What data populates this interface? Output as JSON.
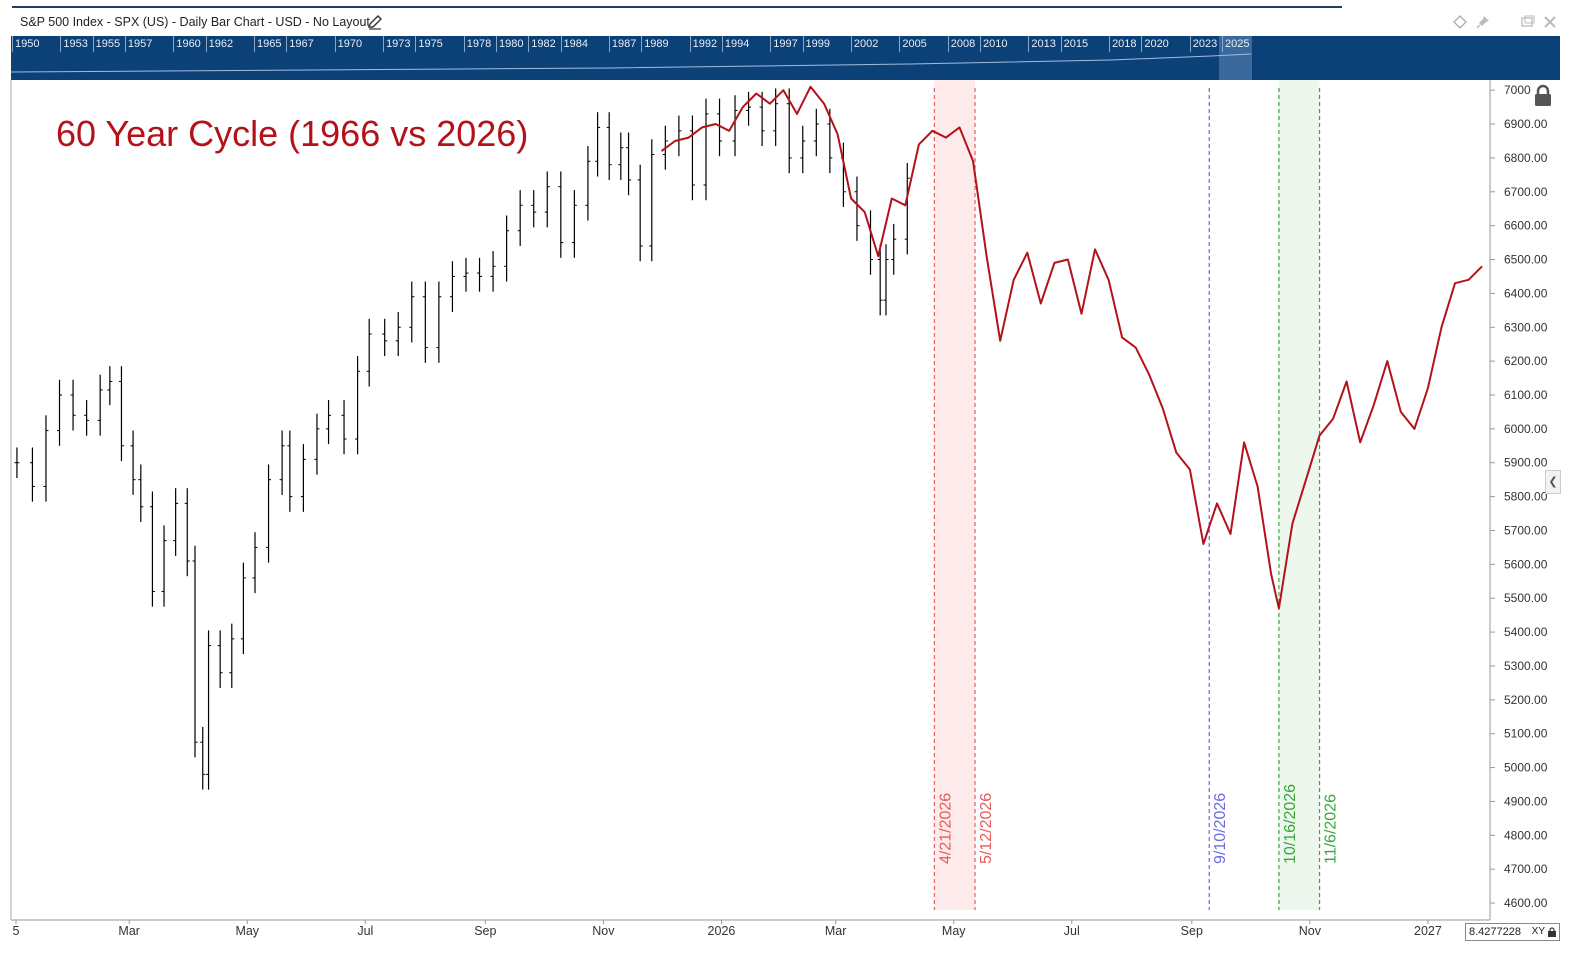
{
  "header": {
    "title": "S&P 500 Index - SPX (US) - Daily Bar Chart - USD - No Layout",
    "edit_icon": "pencil-icon",
    "icons": [
      "diamond-icon",
      "pin-icon",
      "window-icon",
      "close-icon"
    ]
  },
  "navigator": {
    "years": [
      "1950",
      "1953",
      "1955",
      "1957",
      "1960",
      "1962",
      "1965",
      "1967",
      "1970",
      "1973",
      "1975",
      "1978",
      "1980",
      "1982",
      "1984",
      "1987",
      "1989",
      "1992",
      "1994",
      "1997",
      "1999",
      "2002",
      "2005",
      "2008",
      "2010",
      "2013",
      "2015",
      "2018",
      "2020",
      "2023",
      "2025"
    ]
  },
  "overlay_title": "60 Year Cycle (1966 vs 2026)",
  "xy_readout": "8.4277228",
  "xy_label": "XY",
  "colors": {
    "price_bars": "#000000",
    "cycle_line": "#b4121b",
    "red_band": "#e85a5a",
    "blue_line": "#6a6ae8",
    "green_band": "#3aa63a",
    "nav_bg": "#0c4178"
  },
  "chart_data": {
    "type": "line",
    "y_ticks": [
      4600,
      4700,
      4800,
      4900,
      5000,
      5100,
      5200,
      5300,
      5400,
      5500,
      5600,
      5700,
      5800,
      5900,
      6000,
      6100,
      6200,
      6300,
      6400,
      6500,
      6600,
      6700,
      6800,
      6900,
      7000
    ],
    "y_tick_labels": [
      "4600.00",
      "4700.00",
      "4800.00",
      "4900.00",
      "5000.00",
      "5100.00",
      "5200.00",
      "5300.00",
      "5400.00",
      "5500.00",
      "5600.00",
      "5700.00",
      "5800.00",
      "5900.00",
      "6000.00",
      "6100.00",
      "6200.00",
      "6300.00",
      "6400.00",
      "6500.00",
      "6600.00",
      "6700.00",
      "6800.00",
      "6900.00",
      "7000"
    ],
    "ylim": [
      4550,
      7030
    ],
    "x_ticks": [
      {
        "label": "5",
        "date": "2025-01"
      },
      {
        "label": "Mar",
        "date": "2025-03"
      },
      {
        "label": "May",
        "date": "2025-05"
      },
      {
        "label": "Jul",
        "date": "2025-07"
      },
      {
        "label": "Sep",
        "date": "2025-09"
      },
      {
        "label": "Nov",
        "date": "2025-11"
      },
      {
        "label": "2026",
        "date": "2026-01"
      },
      {
        "label": "Mar",
        "date": "2026-03"
      },
      {
        "label": "May",
        "date": "2026-05"
      },
      {
        "label": "Jul",
        "date": "2026-07"
      },
      {
        "label": "Sep",
        "date": "2026-09"
      },
      {
        "label": "Nov",
        "date": "2026-11"
      },
      {
        "label": "2027",
        "date": "2027-01"
      }
    ],
    "xlim": [
      "2025-01-01",
      "2027-01-31"
    ],
    "vertical_lines": [
      {
        "label": "4/21/2026",
        "date": "2026-04-21",
        "color": "#e85a5a"
      },
      {
        "label": "5/12/2026",
        "date": "2026-05-12",
        "color": "#e85a5a"
      },
      {
        "label": "9/10/2026",
        "date": "2026-09-10",
        "color": "#6a6ae8"
      },
      {
        "label": "10/16/2026",
        "date": "2026-10-16",
        "color": "#3aa63a"
      },
      {
        "label": "11/6/2026",
        "date": "2026-11-06",
        "color": "#3aa63a"
      }
    ],
    "bands": [
      {
        "from": "2026-04-21",
        "to": "2026-05-12",
        "color": "#fdeaea"
      },
      {
        "from": "2026-10-16",
        "to": "2026-11-06",
        "color": "#eef7ee"
      }
    ],
    "series": [
      {
        "type": "ohlc",
        "color": "#000000",
        "points": [
          [
            "2025-01-02",
            5900
          ],
          [
            "2025-01-10",
            5830
          ],
          [
            "2025-01-17",
            5995
          ],
          [
            "2025-01-24",
            6100
          ],
          [
            "2025-01-31",
            6040
          ],
          [
            "2025-02-07",
            6025
          ],
          [
            "2025-02-14",
            6115
          ],
          [
            "2025-02-19",
            6140
          ],
          [
            "2025-02-25",
            5950
          ],
          [
            "2025-03-03",
            5850
          ],
          [
            "2025-03-07",
            5770
          ],
          [
            "2025-03-13",
            5520
          ],
          [
            "2025-03-19",
            5670
          ],
          [
            "2025-03-25",
            5780
          ],
          [
            "2025-03-31",
            5610
          ],
          [
            "2025-04-04",
            5075
          ],
          [
            "2025-04-08",
            4980
          ],
          [
            "2025-04-11",
            5360
          ],
          [
            "2025-04-17",
            5280
          ],
          [
            "2025-04-23",
            5380
          ],
          [
            "2025-04-29",
            5560
          ],
          [
            "2025-05-05",
            5650
          ],
          [
            "2025-05-12",
            5850
          ],
          [
            "2025-05-19",
            5950
          ],
          [
            "2025-05-23",
            5800
          ],
          [
            "2025-05-30",
            5910
          ],
          [
            "2025-06-06",
            6000
          ],
          [
            "2025-06-12",
            6040
          ],
          [
            "2025-06-20",
            5970
          ],
          [
            "2025-06-27",
            6170
          ],
          [
            "2025-07-03",
            6280
          ],
          [
            "2025-07-11",
            6260
          ],
          [
            "2025-07-18",
            6300
          ],
          [
            "2025-07-25",
            6390
          ],
          [
            "2025-08-01",
            6240
          ],
          [
            "2025-08-08",
            6390
          ],
          [
            "2025-08-15",
            6450
          ],
          [
            "2025-08-22",
            6460
          ],
          [
            "2025-08-29",
            6450
          ],
          [
            "2025-09-05",
            6480
          ],
          [
            "2025-09-12",
            6585
          ],
          [
            "2025-09-19",
            6660
          ],
          [
            "2025-09-26",
            6640
          ],
          [
            "2025-10-03",
            6715
          ],
          [
            "2025-10-10",
            6550
          ],
          [
            "2025-10-17",
            6660
          ],
          [
            "2025-10-24",
            6790
          ],
          [
            "2025-10-29",
            6890
          ],
          [
            "2025-11-04",
            6780
          ],
          [
            "2025-11-10",
            6830
          ],
          [
            "2025-11-14",
            6735
          ],
          [
            "2025-11-20",
            6540
          ],
          [
            "2025-11-26",
            6810
          ],
          [
            "2025-12-03",
            6850
          ],
          [
            "2025-12-10",
            6880
          ],
          [
            "2025-12-17",
            6720
          ],
          [
            "2025-12-24",
            6930
          ],
          [
            "2025-12-31",
            6850
          ],
          [
            "2026-01-08",
            6940
          ],
          [
            "2026-01-15",
            6950
          ],
          [
            "2026-01-22",
            6880
          ],
          [
            "2026-01-29",
            6960
          ],
          [
            "2026-02-05",
            6800
          ],
          [
            "2026-02-12",
            6850
          ],
          [
            "2026-02-19",
            6900
          ],
          [
            "2026-02-26",
            6800
          ],
          [
            "2026-03-05",
            6700
          ],
          [
            "2026-03-12",
            6600
          ],
          [
            "2026-03-19",
            6500
          ],
          [
            "2026-03-24",
            6380
          ],
          [
            "2026-03-27",
            6500
          ],
          [
            "2026-03-31",
            6560
          ],
          [
            "2026-04-07",
            6740
          ]
        ]
      },
      {
        "name": "",
        "type": "line",
        "color": "#b4121b",
        "points": [
          [
            "2025-12-01",
            6820
          ],
          [
            "2025-12-08",
            6850
          ],
          [
            "2025-12-15",
            6860
          ],
          [
            "2025-12-22",
            6890
          ],
          [
            "2025-12-29",
            6900
          ],
          [
            "2026-01-05",
            6880
          ],
          [
            "2026-01-12",
            6950
          ],
          [
            "2026-01-19",
            6990
          ],
          [
            "2026-01-26",
            6960
          ],
          [
            "2026-02-02",
            7000
          ],
          [
            "2026-02-09",
            6930
          ],
          [
            "2026-02-16",
            7010
          ],
          [
            "2026-02-23",
            6960
          ],
          [
            "2026-03-02",
            6870
          ],
          [
            "2026-03-09",
            6680
          ],
          [
            "2026-03-16",
            6640
          ],
          [
            "2026-03-23",
            6510
          ],
          [
            "2026-03-30",
            6680
          ],
          [
            "2026-04-06",
            6660
          ],
          [
            "2026-04-13",
            6840
          ],
          [
            "2026-04-20",
            6880
          ],
          [
            "2026-04-27",
            6860
          ],
          [
            "2026-05-04",
            6890
          ],
          [
            "2026-05-11",
            6790
          ],
          [
            "2026-05-18",
            6510
          ],
          [
            "2026-05-25",
            6260
          ],
          [
            "2026-06-01",
            6440
          ],
          [
            "2026-06-08",
            6520
          ],
          [
            "2026-06-15",
            6370
          ],
          [
            "2026-06-22",
            6490
          ],
          [
            "2026-06-29",
            6500
          ],
          [
            "2026-07-06",
            6340
          ],
          [
            "2026-07-13",
            6530
          ],
          [
            "2026-07-20",
            6440
          ],
          [
            "2026-07-27",
            6270
          ],
          [
            "2026-08-03",
            6240
          ],
          [
            "2026-08-10",
            6160
          ],
          [
            "2026-08-17",
            6060
          ],
          [
            "2026-08-24",
            5930
          ],
          [
            "2026-08-31",
            5880
          ],
          [
            "2026-09-07",
            5660
          ],
          [
            "2026-09-14",
            5780
          ],
          [
            "2026-09-21",
            5690
          ],
          [
            "2026-09-28",
            5960
          ],
          [
            "2026-10-05",
            5830
          ],
          [
            "2026-10-12",
            5570
          ],
          [
            "2026-10-16",
            5470
          ],
          [
            "2026-10-23",
            5720
          ],
          [
            "2026-10-30",
            5850
          ],
          [
            "2026-11-06",
            5980
          ],
          [
            "2026-11-13",
            6030
          ],
          [
            "2026-11-20",
            6140
          ],
          [
            "2026-11-27",
            5960
          ],
          [
            "2026-12-04",
            6070
          ],
          [
            "2026-12-11",
            6200
          ],
          [
            "2026-12-18",
            6050
          ],
          [
            "2026-12-25",
            6000
          ],
          [
            "2027-01-01",
            6120
          ],
          [
            "2027-01-08",
            6300
          ],
          [
            "2027-01-15",
            6430
          ],
          [
            "2027-01-22",
            6440
          ],
          [
            "2027-01-29",
            6480
          ]
        ]
      }
    ],
    "grid": false,
    "legend": "none"
  }
}
